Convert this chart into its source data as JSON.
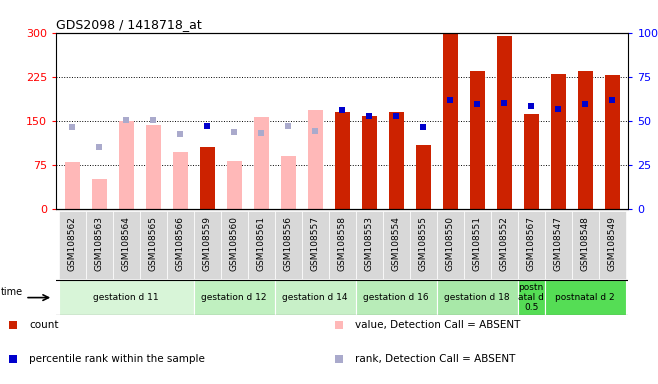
{
  "title": "GDS2098 / 1418718_at",
  "samples": [
    "GSM108562",
    "GSM108563",
    "GSM108564",
    "GSM108565",
    "GSM108566",
    "GSM108559",
    "GSM108560",
    "GSM108561",
    "GSM108556",
    "GSM108557",
    "GSM108558",
    "GSM108553",
    "GSM108554",
    "GSM108555",
    "GSM108550",
    "GSM108551",
    "GSM108552",
    "GSM108567",
    "GSM108547",
    "GSM108548",
    "GSM108549"
  ],
  "count_values": [
    80,
    52,
    150,
    143,
    97,
    105,
    82,
    157,
    90,
    168,
    165,
    158,
    165,
    110,
    300,
    235,
    295,
    162,
    230,
    235,
    228
  ],
  "rank_values": [
    140,
    105,
    152,
    152,
    128,
    142,
    132,
    130,
    142,
    133,
    168,
    158,
    158,
    140,
    185,
    178,
    180,
    175,
    170,
    178,
    185
  ],
  "absent_mask": [
    true,
    true,
    true,
    true,
    true,
    false,
    true,
    true,
    true,
    true,
    false,
    false,
    false,
    false,
    false,
    false,
    false,
    false,
    false,
    false,
    false
  ],
  "rank_absent_mask": [
    true,
    true,
    true,
    true,
    true,
    false,
    true,
    true,
    true,
    true,
    false,
    false,
    false,
    false,
    false,
    false,
    false,
    false,
    false,
    false,
    false
  ],
  "groups": [
    {
      "label": "gestation d 11",
      "start": 0,
      "end": 5,
      "color": "#d8f5d8"
    },
    {
      "label": "gestation d 12",
      "start": 5,
      "end": 8,
      "color": "#c0f0c0"
    },
    {
      "label": "gestation d 14",
      "start": 8,
      "end": 11,
      "color": "#c8f0c8"
    },
    {
      "label": "gestation d 16",
      "start": 11,
      "end": 14,
      "color": "#b8ecb8"
    },
    {
      "label": "gestation d 18",
      "start": 14,
      "end": 17,
      "color": "#a8e8a8"
    },
    {
      "label": "postn\natal d\n0.5",
      "start": 17,
      "end": 18,
      "color": "#55dd55"
    },
    {
      "label": "postnatal d 2",
      "start": 18,
      "end": 21,
      "color": "#55dd55"
    }
  ],
  "bar_color_present": "#cc2200",
  "bar_color_absent": "#ffb8b8",
  "rank_color_present": "#0000cc",
  "rank_color_absent": "#aaaacc",
  "ylim_left": [
    0,
    300
  ],
  "ylim_right": [
    0,
    100
  ],
  "yticks_left": [
    0,
    75,
    150,
    225,
    300
  ],
  "yticks_right": [
    0,
    25,
    50,
    75,
    100
  ],
  "background_color": "#ffffff",
  "plot_bg_color": "#ffffff",
  "tick_bg_color": "#d8d8d8",
  "grid_color": "#000000",
  "bar_width": 0.55
}
